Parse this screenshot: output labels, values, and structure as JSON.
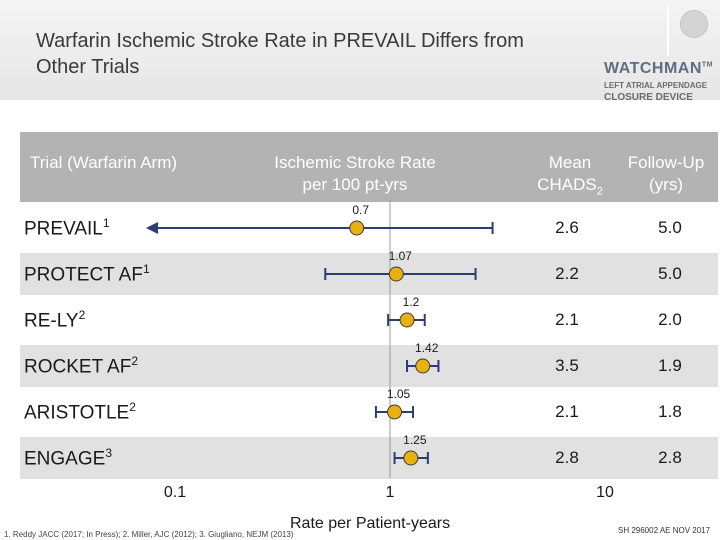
{
  "title": "Warfarin Ischemic Stroke Rate in PREVAIL Differs from Other Trials",
  "logo": {
    "word": "WATCHMAN",
    "tm": "TM",
    "line1": "LEFT ATRIAL APPENDAGE",
    "line2": "CLOSURE DEVICE"
  },
  "headers": {
    "trial": "Trial (Warfarin Arm)",
    "rate": "Ischemic Stroke Rate per 100 pt-yrs",
    "chads_prefix": "Mean CHADS",
    "chads_sub": "2",
    "followup": "Follow-Up (yrs)"
  },
  "footnote": "1. Reddy JACC (2017; In Press); 2. Miller, AJC (2012); 3. Giugliano, NEJM (2013)",
  "code": "SH 296002 AE NOV 2017",
  "colors": {
    "header_band": "#b3b3b3",
    "row_band": "#e1e1e1",
    "marker": "#e8b20e",
    "ci_line": "#2e3c74"
  },
  "chart_data": {
    "type": "forest",
    "xlabel": "Rate per Patient-years",
    "xscale": "log",
    "xlim": [
      0.1,
      10
    ],
    "ticks": [
      "0.1",
      "1",
      "10"
    ],
    "rows": [
      {
        "trial": "PREVAIL",
        "ref": "1",
        "estimate": 0.7,
        "label": "0.7",
        "ci_low": null,
        "ci_high": 3.0,
        "ci_low_arrow": true,
        "chads2": "2.6",
        "followup": "5.0",
        "band": false
      },
      {
        "trial": "PROTECT AF",
        "ref": "1",
        "estimate": 1.07,
        "label": "1.07",
        "ci_low": 0.5,
        "ci_high": 2.5,
        "ci_low_arrow": false,
        "chads2": "2.2",
        "followup": "5.0",
        "band": true
      },
      {
        "trial": "RE-LY",
        "ref": "2",
        "estimate": 1.2,
        "label": "1.2",
        "ci_low": 0.98,
        "ci_high": 1.45,
        "ci_low_arrow": false,
        "chads2": "2.1",
        "followup": "2.0",
        "band": false
      },
      {
        "trial": "ROCKET AF",
        "ref": "2",
        "estimate": 1.42,
        "label": "1.42",
        "ci_low": 1.2,
        "ci_high": 1.68,
        "ci_low_arrow": false,
        "chads2": "3.5",
        "followup": "1.9",
        "band": true
      },
      {
        "trial": "ARISTOTLE",
        "ref": "2",
        "estimate": 1.05,
        "label": "1.05",
        "ci_low": 0.86,
        "ci_high": 1.28,
        "ci_low_arrow": false,
        "chads2": "2.1",
        "followup": "1.8",
        "band": false
      },
      {
        "trial": "ENGAGE",
        "ref": "3",
        "estimate": 1.25,
        "label": "1.25",
        "ci_low": 1.05,
        "ci_high": 1.5,
        "ci_low_arrow": false,
        "chads2": "2.8",
        "followup": "2.8",
        "band": true
      }
    ]
  }
}
